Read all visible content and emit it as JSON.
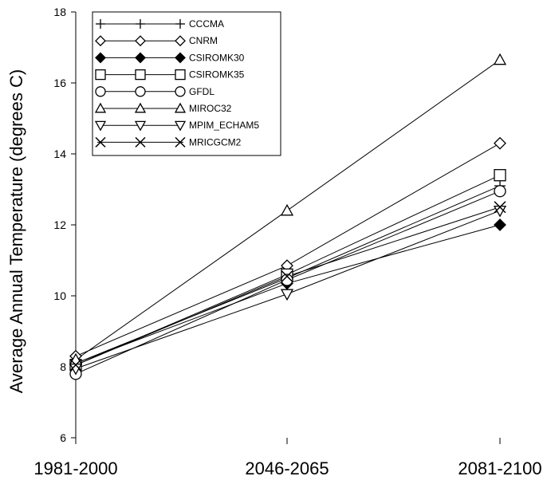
{
  "chart_data": {
    "type": "line",
    "categories": [
      "1981-2000",
      "2046-2065",
      "2081-2100"
    ],
    "ylabel": "Average Annual Temperature (degrees C)",
    "xlabel": "",
    "ylim": [
      6,
      18
    ],
    "yticks": [
      6,
      8,
      10,
      12,
      14,
      16,
      18
    ],
    "grid": false,
    "legend_position": "top-left",
    "line_color": "#000000",
    "series": [
      {
        "name": "CCCMA",
        "marker": "plus",
        "values": [
          8.1,
          10.5,
          13.1
        ]
      },
      {
        "name": "CNRM",
        "marker": "diamond-open",
        "values": [
          8.3,
          10.85,
          14.3
        ]
      },
      {
        "name": "CSIROMK30",
        "marker": "diamond-filled",
        "values": [
          8.1,
          10.35,
          12.0
        ]
      },
      {
        "name": "CSIROMK35",
        "marker": "square-open",
        "values": [
          8.05,
          10.6,
          13.4
        ]
      },
      {
        "name": "GFDL",
        "marker": "circle-open",
        "values": [
          7.8,
          10.45,
          12.95
        ]
      },
      {
        "name": "MIROC32",
        "marker": "triangle-up",
        "values": [
          8.2,
          12.4,
          16.65
        ]
      },
      {
        "name": "MPIM_ECHAM5",
        "marker": "triangle-down",
        "values": [
          7.95,
          10.05,
          12.4
        ]
      },
      {
        "name": "MRICGCM2",
        "marker": "x",
        "values": [
          8.05,
          10.55,
          12.5
        ]
      }
    ]
  }
}
